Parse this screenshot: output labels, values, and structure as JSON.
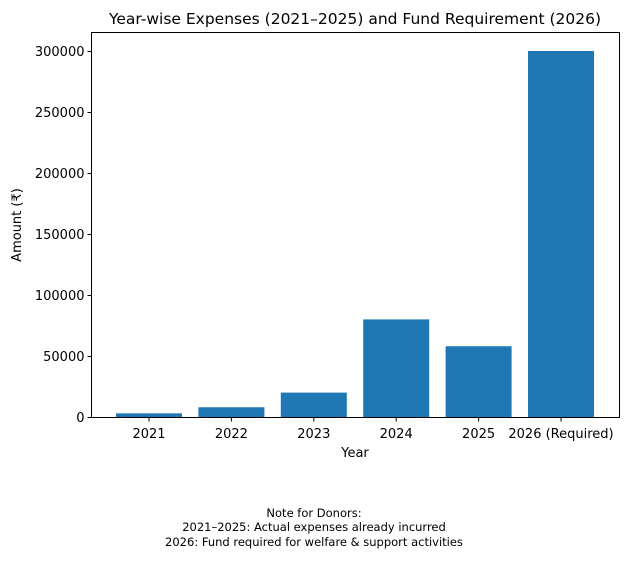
{
  "chart_data": {
    "type": "bar",
    "title": "Year-wise Expenses (2021–2025) and Fund Requirement (2026)",
    "xlabel": "Year",
    "ylabel": "Amount (₹)",
    "categories": [
      "2021",
      "2022",
      "2023",
      "2024",
      "2025",
      "2026 (Required)"
    ],
    "values": [
      3000,
      8000,
      20000,
      80000,
      58000,
      300000
    ],
    "ylim": [
      0,
      315000
    ],
    "yticks": [
      0,
      50000,
      100000,
      150000,
      200000,
      250000,
      300000
    ],
    "grid": false,
    "bar_color": "#1f77b4"
  },
  "note": {
    "line1": "Note for Donors:",
    "line2": "2021–2025: Actual expenses already incurred",
    "line3": "2026: Fund required for welfare & support activities"
  }
}
